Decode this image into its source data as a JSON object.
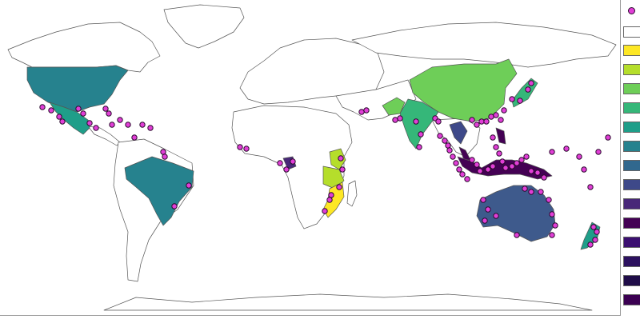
{
  "map": {
    "land_color": "#ffffff",
    "border_color": "#555555",
    "point_fill": "#e13ed6",
    "point_stroke": "#2b0b2e"
  },
  "legend": {
    "point_symbol": "site-marker",
    "swatches": [
      "#ffffff",
      "#fde725",
      "#b5de2b",
      "#6ece58",
      "#35b779",
      "#1f9e89",
      "#26828e",
      "#31688e",
      "#3e4989",
      "#482878",
      "#440154",
      "#3b0f70",
      "#2c115f",
      "#1f0c48",
      "#3b0052"
    ]
  },
  "regions": [
    {
      "name": "usa",
      "color": "#26828e"
    },
    {
      "name": "mexico",
      "color": "#1f9e89"
    },
    {
      "name": "brazil",
      "color": "#26828e"
    },
    {
      "name": "india",
      "color": "#35b779"
    },
    {
      "name": "china",
      "color": "#6ece58"
    },
    {
      "name": "japan",
      "color": "#35b779"
    },
    {
      "name": "australia",
      "color": "#3e5a8c"
    },
    {
      "name": "indonesia",
      "color": "#440154"
    },
    {
      "name": "thailand",
      "color": "#3e4989"
    },
    {
      "name": "tanzania",
      "color": "#b5de2b"
    },
    {
      "name": "mozambique",
      "color": "#fde725"
    },
    {
      "name": "new-zealand",
      "color": "#1f9e89"
    },
    {
      "name": "gabon",
      "color": "#482878"
    },
    {
      "name": "pakistan",
      "color": "#6ece58"
    },
    {
      "name": "malaysia",
      "color": "#440154"
    },
    {
      "name": "philippines",
      "color": "#440154"
    },
    {
      "name": "kenya",
      "color": "#b5de2b"
    }
  ]
}
